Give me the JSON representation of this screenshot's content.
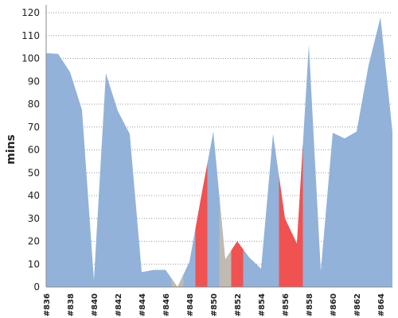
{
  "chart_data": {
    "type": "area",
    "y_label": "mins",
    "categories": [
      "#836",
      null,
      "#838",
      null,
      "#840",
      null,
      "#842",
      null,
      "#844",
      null,
      "#846",
      null,
      "#848",
      null,
      "#850",
      null,
      "#852",
      null,
      "#854",
      null,
      "#856",
      null,
      "#858",
      null,
      "#860",
      null,
      "#862",
      null,
      "#864",
      null
    ],
    "values": [
      102.3,
      102,
      94,
      77.5,
      3,
      93.5,
      77,
      67,
      6.5,
      7.5,
      7.5,
      0,
      11,
      40,
      68,
      12,
      20,
      13,
      8,
      67,
      30,
      19,
      106,
      7,
      67.5,
      65,
      68,
      97,
      118,
      68
    ],
    "color": "#90b0d8",
    "point_colors": [
      "#90b0d8",
      "#90b0d8",
      "#90b0d8",
      "#90b0d8",
      "#90b0d8",
      "#90b0d8",
      "#90b0d8",
      "#90b0d8",
      "#90b0d8",
      "#90b0d8",
      "#90b0d8",
      "#c0bab2",
      "#90b0d8",
      "#f05252",
      "#90b0d8",
      "#c0bab2",
      "#f05252",
      "#90b0d8",
      "#90b0d8",
      "#90b0d8",
      "#f05252",
      "#f05252",
      "#90b0d8",
      "#90b0d8",
      "#90b0d8",
      "#90b0d8",
      "#90b0d8",
      "#90b0d8",
      "#90b0d8",
      "#90b0d8"
    ],
    "ylim": [
      0,
      120
    ],
    "yticks": [
      0,
      10,
      20,
      30,
      40,
      50,
      60,
      70,
      80,
      90,
      100,
      110,
      120
    ],
    "grid": true
  }
}
